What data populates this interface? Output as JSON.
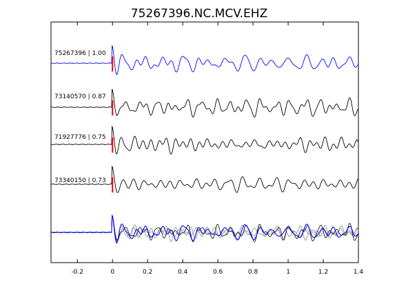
{
  "chart_data": {
    "type": "line",
    "title": "75267396.NC.MCV.EHZ",
    "xlabel": "",
    "ylabel": "",
    "xlim": [
      -0.35,
      1.4
    ],
    "x_ticks": [
      -0.2,
      0,
      0.2,
      0.4,
      0.6,
      0.8,
      1,
      1.2,
      1.4
    ],
    "x_tick_labels": [
      "-0.2",
      "0",
      "0.2",
      "0.4",
      "0.6",
      "0.8",
      "1",
      "1.2",
      "1.4"
    ],
    "grid": false,
    "pick_time": 0.0,
    "trace_labels": [
      "75267396 | 1.00",
      "73140570 | 0.87",
      "71927776 | 0.75",
      "73340150 | 0.73"
    ],
    "colors": {
      "primary_trace": "#0000ff",
      "similar_trace": "#000000",
      "overlay_gray": "#888888",
      "pick_marker": "#ff0000",
      "axes": "#000000"
    }
  }
}
